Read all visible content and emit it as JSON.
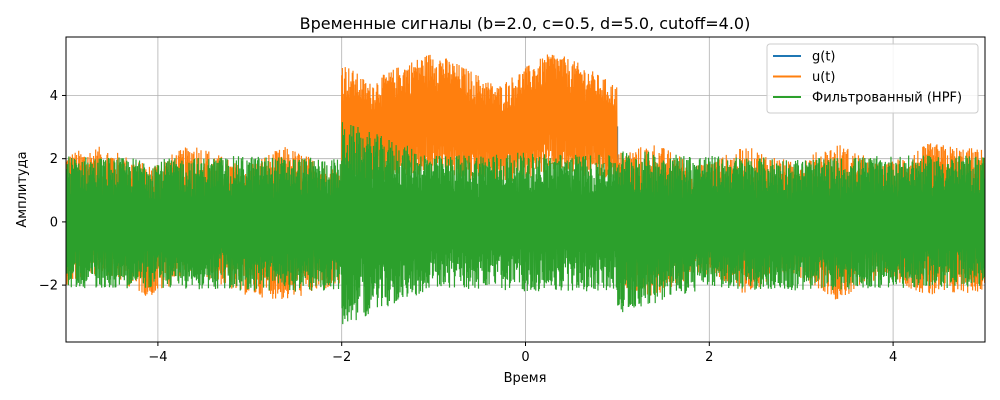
{
  "chart_data": {
    "type": "line",
    "title": "Временные сигналы (b=2.0, c=0.5, d=5.0, cutoff=4.0)",
    "xlabel": "Время",
    "ylabel": "Амплитуда",
    "xlim": [
      -5,
      5
    ],
    "ylim": [
      -3.8,
      5.85
    ],
    "xticks": [
      -4,
      -2,
      0,
      2,
      4
    ],
    "yticks": [
      -2,
      0,
      2,
      4
    ],
    "xtick_labels": [
      "−4",
      "−2",
      "0",
      "2",
      "4"
    ],
    "ytick_labels": [
      "−2",
      "0",
      "2",
      "4"
    ],
    "grid": true,
    "legend_position": "top-right",
    "series": [
      {
        "name": "g(t)",
        "color": "#1f77b4",
        "description_points": {
          "x": [
            -5,
            -2,
            -2,
            1,
            1,
            5
          ],
          "y": [
            0,
            0,
            3,
            3,
            0,
            0
          ]
        }
      },
      {
        "name": "u(t)",
        "color": "#ff7f0e",
        "envelope": {
          "x": [
            -5,
            -4.6,
            -4.1,
            -3.6,
            -3.1,
            -2.6,
            -2.0,
            -2.0,
            -1.7,
            -1.4,
            -1.0,
            -0.6,
            -0.3,
            0.0,
            0.3,
            0.6,
            1.0,
            1.0,
            1.4,
            1.9,
            2.4,
            2.9,
            3.4,
            3.9,
            4.4,
            5.0
          ],
          "upper": [
            2.2,
            2.4,
            1.8,
            2.5,
            1.8,
            2.4,
            1.6,
            5.1,
            4.4,
            4.9,
            5.4,
            4.8,
            4.3,
            4.9,
            5.4,
            5.0,
            4.3,
            2.2,
            2.5,
            1.8,
            2.4,
            1.9,
            2.5,
            1.8,
            2.5,
            2.3
          ],
          "lower": [
            -2.0,
            -1.6,
            -2.4,
            -1.6,
            -2.3,
            -2.5,
            -2.0,
            0.9,
            1.2,
            1.4,
            1.5,
            1.3,
            1.1,
            1.3,
            1.6,
            1.4,
            1.3,
            -2.0,
            -2.4,
            -1.6,
            -2.3,
            -1.6,
            -2.5,
            -1.7,
            -2.4,
            -2.2
          ]
        }
      },
      {
        "name": "Фильтрованный (HPF)",
        "color": "#2ca02c",
        "envelope": {
          "x": [
            -5,
            -4,
            -3,
            -2.0,
            -2.0,
            -1.0,
            0.0,
            1.0,
            1.0,
            2.0,
            3.0,
            4.0,
            5.0
          ],
          "upper": [
            2.1,
            2.0,
            2.1,
            2.0,
            3.2,
            2.1,
            2.2,
            2.1,
            2.3,
            2.1,
            2.0,
            2.1,
            2.1
          ],
          "lower": [
            -2.1,
            -2.1,
            -2.2,
            -2.2,
            -3.3,
            -2.1,
            -2.2,
            -2.2,
            -2.9,
            -2.1,
            -2.2,
            -2.1,
            -2.1
          ]
        }
      }
    ]
  }
}
